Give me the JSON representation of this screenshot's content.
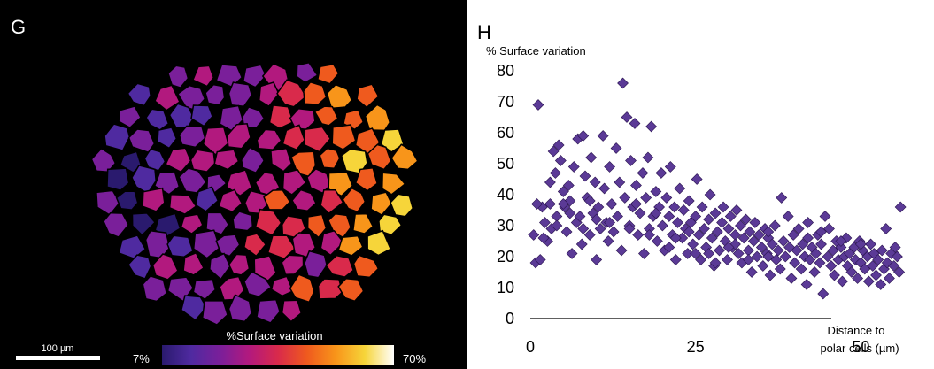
{
  "panel_g": {
    "letter": "G",
    "scale_bar_label": "100 µm",
    "colorbar_title": "%Surface variation",
    "colorbar_min": "7%",
    "colorbar_max": "70%",
    "colormap": [
      "#2a1a6e",
      "#4f2aa0",
      "#7a1f9a",
      "#b2197e",
      "#d92a4b",
      "#ef5a1e",
      "#f8951a",
      "#f6d53a",
      "#ffffff"
    ]
  },
  "panel_h": {
    "letter": "H"
  },
  "chart_data": {
    "type": "scatter",
    "title": "",
    "ylabel": "% Surface variation",
    "xlabel": "Distance to polar cells (µm)",
    "xlabel_lines": [
      "Distance to",
      "polar cells (µm)"
    ],
    "xlim": [
      0,
      60
    ],
    "ylim": [
      0,
      80
    ],
    "xticks": [
      0,
      25,
      50
    ],
    "yticks": [
      0,
      10,
      20,
      30,
      40,
      50,
      60,
      70,
      80
    ],
    "marker": "diamond",
    "marker_color": "#5b3a96",
    "series": [
      {
        "points": [
          [
            0.5,
            27
          ],
          [
            0.8,
            18
          ],
          [
            1.2,
            69
          ],
          [
            1.5,
            19
          ],
          [
            1.8,
            36
          ],
          [
            2.2,
            31
          ],
          [
            2.6,
            25
          ],
          [
            3,
            37
          ],
          [
            3.2,
            29
          ],
          [
            3.5,
            54
          ],
          [
            3.8,
            47
          ],
          [
            4,
            33
          ],
          [
            4.3,
            56
          ],
          [
            4.6,
            51
          ],
          [
            5,
            41
          ],
          [
            5.2,
            36
          ],
          [
            5.5,
            28
          ],
          [
            5.8,
            43
          ],
          [
            6,
            38
          ],
          [
            6.3,
            21
          ],
          [
            6.6,
            49
          ],
          [
            7,
            31
          ],
          [
            7.2,
            58
          ],
          [
            7.5,
            33
          ],
          [
            7.8,
            24
          ],
          [
            8,
            59
          ],
          [
            8.3,
            46
          ],
          [
            8.6,
            39
          ],
          [
            9,
            27
          ],
          [
            9.2,
            52
          ],
          [
            9.5,
            34
          ],
          [
            9.8,
            44
          ],
          [
            10,
            19
          ],
          [
            10.3,
            36
          ],
          [
            10.6,
            29
          ],
          [
            11,
            59
          ],
          [
            11.2,
            42
          ],
          [
            11.5,
            31
          ],
          [
            11.8,
            25
          ],
          [
            12,
            49
          ],
          [
            12.3,
            37
          ],
          [
            12.6,
            28
          ],
          [
            13,
            55
          ],
          [
            13.2,
            33
          ],
          [
            13.5,
            44
          ],
          [
            13.8,
            22
          ],
          [
            14,
            76
          ],
          [
            14.3,
            39
          ],
          [
            14.6,
            65
          ],
          [
            15,
            30
          ],
          [
            15.2,
            51
          ],
          [
            15.5,
            36
          ],
          [
            15.8,
            63
          ],
          [
            16,
            43
          ],
          [
            16.3,
            27
          ],
          [
            16.6,
            34
          ],
          [
            17,
            47
          ],
          [
            17.2,
            21
          ],
          [
            17.5,
            39
          ],
          [
            17.8,
            52
          ],
          [
            18,
            29
          ],
          [
            18.3,
            62
          ],
          [
            18.6,
            33
          ],
          [
            19,
            41
          ],
          [
            19.2,
            25
          ],
          [
            19.5,
            36
          ],
          [
            19.8,
            47
          ],
          [
            20,
            30
          ],
          [
            20.3,
            22
          ],
          [
            20.6,
            39
          ],
          [
            21,
            33
          ],
          [
            21.2,
            49
          ],
          [
            21.5,
            27
          ],
          [
            21.8,
            36
          ],
          [
            22,
            19
          ],
          [
            22.3,
            31
          ],
          [
            22.6,
            42
          ],
          [
            23,
            26
          ],
          [
            23.2,
            35
          ],
          [
            23.5,
            29
          ],
          [
            23.8,
            21
          ],
          [
            24,
            38
          ],
          [
            24.3,
            31
          ],
          [
            24.6,
            24
          ],
          [
            25,
            33
          ],
          [
            25.2,
            45
          ],
          [
            25.5,
            27
          ],
          [
            25.8,
            19
          ],
          [
            26,
            36
          ],
          [
            26.3,
            29
          ],
          [
            26.6,
            23
          ],
          [
            27,
            32
          ],
          [
            27.2,
            40
          ],
          [
            27.5,
            26
          ],
          [
            27.8,
            17
          ],
          [
            28,
            34
          ],
          [
            28.3,
            28
          ],
          [
            28.6,
            22
          ],
          [
            29,
            31
          ],
          [
            29.2,
            36
          ],
          [
            29.5,
            25
          ],
          [
            29.8,
            19
          ],
          [
            30,
            29
          ],
          [
            30.3,
            33
          ],
          [
            30.6,
            23
          ],
          [
            31,
            27
          ],
          [
            31.2,
            35
          ],
          [
            31.5,
            21
          ],
          [
            31.8,
            30
          ],
          [
            32,
            18
          ],
          [
            32.3,
            26
          ],
          [
            32.6,
            32
          ],
          [
            33,
            22
          ],
          [
            33.2,
            28
          ],
          [
            33.5,
            15
          ],
          [
            33.8,
            25
          ],
          [
            34,
            31
          ],
          [
            34.3,
            20
          ],
          [
            34.6,
            27
          ],
          [
            35,
            23
          ],
          [
            35.2,
            17
          ],
          [
            35.5,
            29
          ],
          [
            35.8,
            21
          ],
          [
            36,
            26
          ],
          [
            36.3,
            14
          ],
          [
            36.6,
            24
          ],
          [
            37,
            30
          ],
          [
            37.2,
            19
          ],
          [
            37.5,
            22
          ],
          [
            37.8,
            16
          ],
          [
            38,
            39
          ],
          [
            38.3,
            25
          ],
          [
            38.6,
            20
          ],
          [
            39,
            33
          ],
          [
            39.2,
            23
          ],
          [
            39.5,
            13
          ],
          [
            39.8,
            27
          ],
          [
            40,
            18
          ],
          [
            40.3,
            22
          ],
          [
            40.6,
            29
          ],
          [
            41,
            16
          ],
          [
            41.2,
            24
          ],
          [
            41.5,
            20
          ],
          [
            41.8,
            11
          ],
          [
            42,
            26
          ],
          [
            42.3,
            19
          ],
          [
            42.6,
            23
          ],
          [
            43,
            15
          ],
          [
            43.2,
            21
          ],
          [
            43.5,
            27
          ],
          [
            43.8,
            18
          ],
          [
            44,
            24
          ],
          [
            44.3,
            8
          ],
          [
            44.6,
            33
          ],
          [
            45,
            20
          ],
          [
            45.2,
            29
          ],
          [
            45.5,
            17
          ],
          [
            45.8,
            22
          ],
          [
            46,
            14
          ],
          [
            46.3,
            25
          ],
          [
            46.6,
            19
          ],
          [
            47,
            23
          ],
          [
            47.2,
            12
          ],
          [
            47.5,
            20
          ],
          [
            47.8,
            26
          ],
          [
            48,
            17
          ],
          [
            48.3,
            21
          ],
          [
            48.6,
            15
          ],
          [
            49,
            23
          ],
          [
            49.2,
            19
          ],
          [
            49.5,
            13
          ],
          [
            49.8,
            25
          ],
          [
            50,
            18
          ],
          [
            50.3,
            22
          ],
          [
            50.6,
            16
          ],
          [
            51,
            20
          ],
          [
            51.2,
            12
          ],
          [
            51.5,
            24
          ],
          [
            51.8,
            17
          ],
          [
            52,
            21
          ],
          [
            52.3,
            14
          ],
          [
            52.6,
            19
          ],
          [
            53,
            11
          ],
          [
            53.2,
            22
          ],
          [
            53.5,
            16
          ],
          [
            53.8,
            29
          ],
          [
            54,
            18
          ],
          [
            54.3,
            13
          ],
          [
            54.6,
            21
          ],
          [
            55,
            17
          ],
          [
            55.2,
            23
          ],
          [
            55.5,
            20
          ],
          [
            55.8,
            15
          ],
          [
            56,
            36
          ],
          [
            36,
            28
          ],
          [
            31,
            24
          ],
          [
            28,
            18
          ],
          [
            25,
            21
          ],
          [
            22,
            26
          ],
          [
            19,
            34
          ],
          [
            16,
            37
          ],
          [
            12,
            31
          ],
          [
            9,
            38
          ],
          [
            6,
            34
          ],
          [
            4,
            30
          ],
          [
            2,
            26
          ],
          [
            42,
            31
          ],
          [
            44,
            28
          ],
          [
            47,
            25
          ],
          [
            50,
            24
          ],
          [
            36,
            20
          ],
          [
            33,
            19
          ],
          [
            30,
            23
          ],
          [
            27,
            21
          ],
          [
            24,
            28
          ],
          [
            21,
            23
          ],
          [
            18,
            27
          ],
          [
            15,
            29
          ],
          [
            10,
            32
          ],
          [
            8,
            29
          ],
          [
            5,
            37
          ],
          [
            3,
            44
          ],
          [
            1,
            37
          ]
        ]
      }
    ]
  }
}
